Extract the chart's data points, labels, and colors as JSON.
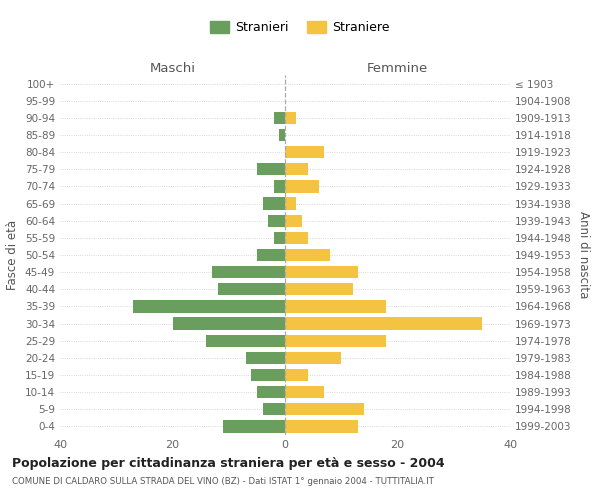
{
  "age_groups": [
    "100+",
    "95-99",
    "90-94",
    "85-89",
    "80-84",
    "75-79",
    "70-74",
    "65-69",
    "60-64",
    "55-59",
    "50-54",
    "45-49",
    "40-44",
    "35-39",
    "30-34",
    "25-29",
    "20-24",
    "15-19",
    "10-14",
    "5-9",
    "0-4"
  ],
  "birth_years": [
    "≤ 1903",
    "1904-1908",
    "1909-1913",
    "1914-1918",
    "1919-1923",
    "1924-1928",
    "1929-1933",
    "1934-1938",
    "1939-1943",
    "1944-1948",
    "1949-1953",
    "1954-1958",
    "1959-1963",
    "1964-1968",
    "1969-1973",
    "1974-1978",
    "1979-1983",
    "1984-1988",
    "1989-1993",
    "1994-1998",
    "1999-2003"
  ],
  "maschi": [
    0,
    0,
    2,
    1,
    0,
    5,
    2,
    4,
    3,
    2,
    5,
    13,
    12,
    27,
    20,
    14,
    7,
    6,
    5,
    4,
    11
  ],
  "femmine": [
    0,
    0,
    2,
    0,
    7,
    4,
    6,
    2,
    3,
    4,
    8,
    13,
    12,
    18,
    35,
    18,
    10,
    4,
    7,
    14,
    13
  ],
  "maschi_color": "#6a9e5e",
  "femmine_color": "#f5c342",
  "bg_color": "#ffffff",
  "grid_color": "#cccccc",
  "title": "Popolazione per cittadinanza straniera per età e sesso - 2004",
  "subtitle": "COMUNE DI CALDARO SULLA STRADA DEL VINO (BZ) - Dati ISTAT 1° gennaio 2004 - TUTTITALIA.IT",
  "xlabel_left": "Maschi",
  "xlabel_right": "Femmine",
  "ylabel_left": "Fasce di età",
  "ylabel_right": "Anni di nascita",
  "xlim": 40,
  "legend_stranieri": "Stranieri",
  "legend_straniere": "Straniere"
}
